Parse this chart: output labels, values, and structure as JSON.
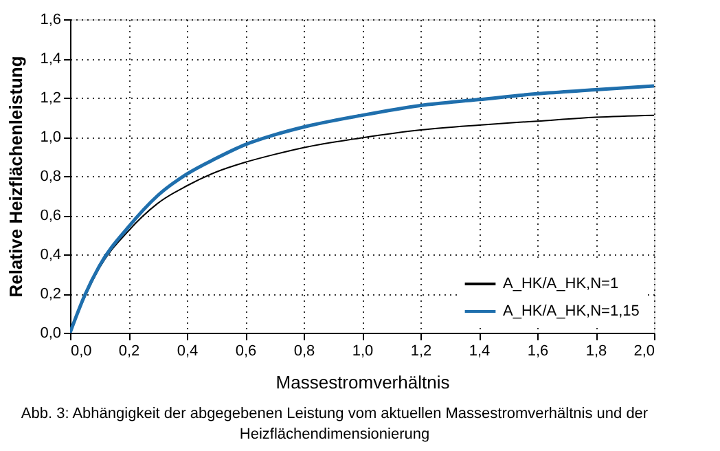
{
  "chart_data": {
    "type": "line",
    "xlabel": "Massestromverhältnis",
    "ylabel": "Relative Heizflächenleistung",
    "x": [
      0,
      0.05,
      0.1,
      0.2,
      0.3,
      0.4,
      0.5,
      0.6,
      0.7,
      0.8,
      1.0,
      1.2,
      1.4,
      1.6,
      1.8,
      2.0
    ],
    "series": [
      {
        "name": "A_HK/A_HK,N=1",
        "color": "#000000",
        "values": [
          0,
          0.18,
          0.33,
          0.52,
          0.66,
          0.75,
          0.82,
          0.87,
          0.91,
          0.945,
          0.995,
          1.035,
          1.06,
          1.08,
          1.1,
          1.11
        ]
      },
      {
        "name": "A_HK/A_HK,N=1,15",
        "color": "#1f6fad",
        "values": [
          0,
          0.19,
          0.34,
          0.54,
          0.7,
          0.81,
          0.89,
          0.96,
          1.01,
          1.05,
          1.11,
          1.16,
          1.19,
          1.22,
          1.24,
          1.26
        ]
      }
    ],
    "xlim": [
      0,
      2.0
    ],
    "ylim": [
      0,
      1.6
    ],
    "xticks": [
      {
        "value": 0,
        "label": "0,0"
      },
      {
        "value": 0.2,
        "label": "0,2"
      },
      {
        "value": 0.4,
        "label": "0,4"
      },
      {
        "value": 0.6,
        "label": "0,6"
      },
      {
        "value": 0.8,
        "label": "0,8"
      },
      {
        "value": 1.0,
        "label": "1,0"
      },
      {
        "value": 1.2,
        "label": "1,2"
      },
      {
        "value": 1.4,
        "label": "1,4"
      },
      {
        "value": 1.6,
        "label": "1,6"
      },
      {
        "value": 1.8,
        "label": "1,8"
      },
      {
        "value": 2.0,
        "label": "2,0"
      }
    ],
    "yticks": [
      {
        "value": 0,
        "label": "0,0"
      },
      {
        "value": 0.2,
        "label": "0,2"
      },
      {
        "value": 0.4,
        "label": "0,4"
      },
      {
        "value": 0.6,
        "label": "0,6"
      },
      {
        "value": 0.8,
        "label": "0,8"
      },
      {
        "value": 1.0,
        "label": "1,0"
      },
      {
        "value": 1.2,
        "label": "1,2"
      },
      {
        "value": 1.4,
        "label": "1,4"
      },
      {
        "value": 1.6,
        "label": "1,6"
      }
    ],
    "grid": true,
    "legend": "bottom right",
    "marker": "none",
    "line_style": "solid",
    "annotations": [
      "Abb. 3: Abhängigkeit der abgegebenen Leistung vom aktuellen Massestromverhältnis und der Heizflächendimensionierung"
    ]
  }
}
